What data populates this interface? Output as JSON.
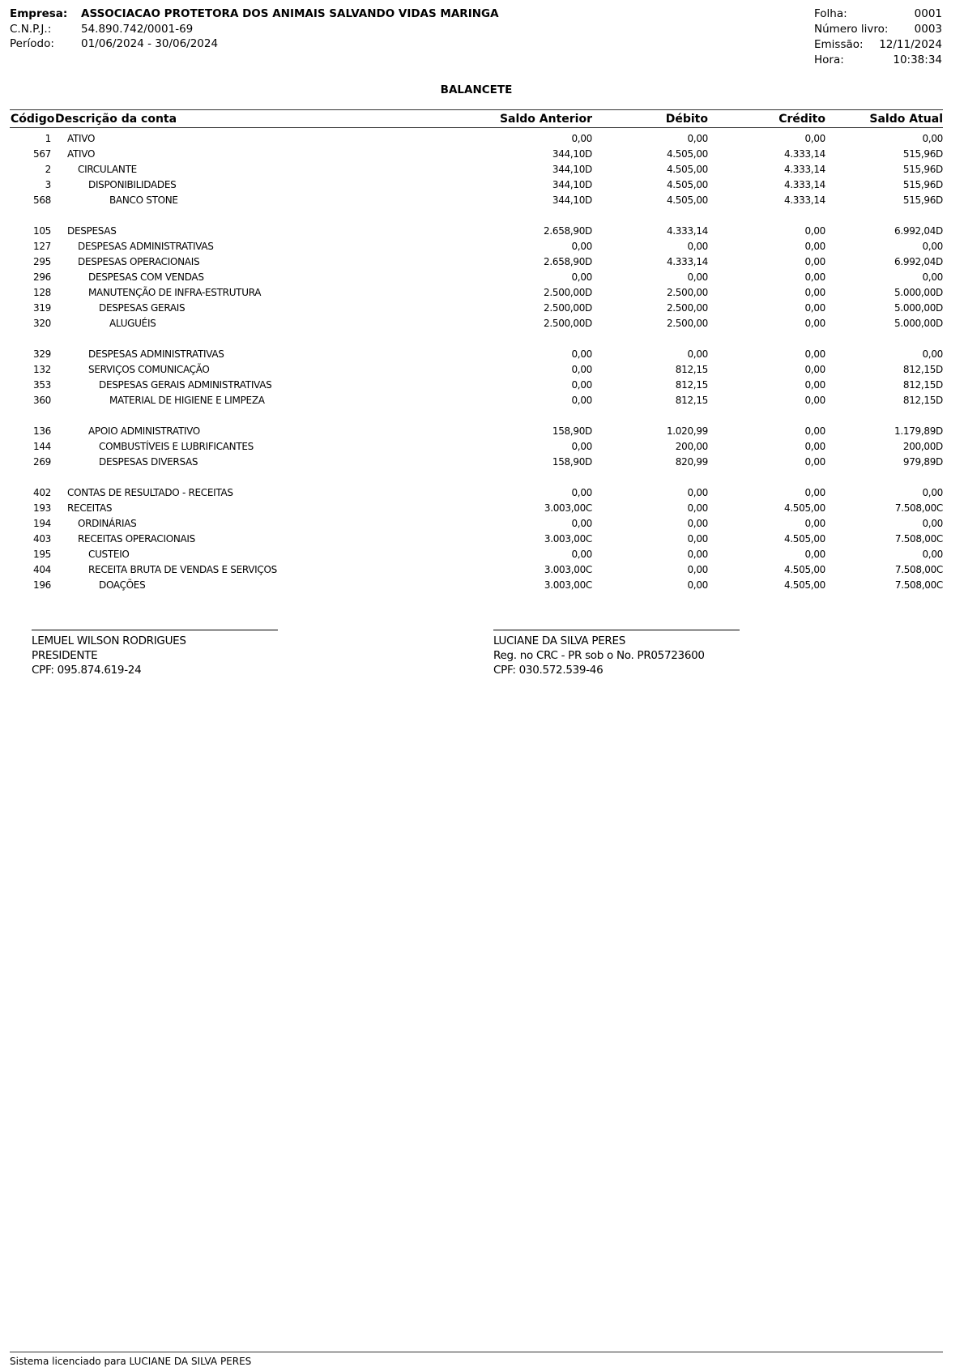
{
  "header": {
    "empresa_label": "Empresa:",
    "empresa": "ASSOCIACAO PROTETORA DOS ANIMAIS SALVANDO VIDAS MARINGA",
    "cnpj_label": "C.N.P.J.:",
    "cnpj": "54.890.742/0001-69",
    "periodo_label": "Período:",
    "periodo": "01/06/2024 - 30/06/2024",
    "folha_label": "Folha:",
    "folha": "0001",
    "livro_label": "Número livro:",
    "livro": "0003",
    "emissao_label": "Emissão:",
    "emissao": "12/11/2024",
    "hora_label": "Hora:",
    "hora": "10:38:34"
  },
  "title": "BALANCETE",
  "columns": {
    "codigo": "Código",
    "descricao": "Descrição da conta",
    "saldo_anterior": "Saldo Anterior",
    "debito": "Débito",
    "credito": "Crédito",
    "saldo_atual": "Saldo Atual"
  },
  "groups": [
    [
      {
        "code": "1",
        "desc": "ATIVO",
        "level": 0,
        "sa": "0,00",
        "deb": "0,00",
        "cred": "0,00",
        "at": "0,00"
      },
      {
        "code": "567",
        "desc": "ATIVO",
        "level": 0,
        "sa": "344,10D",
        "deb": "4.505,00",
        "cred": "4.333,14",
        "at": "515,96D"
      },
      {
        "code": "2",
        "desc": "CIRCULANTE",
        "level": 1,
        "sa": "344,10D",
        "deb": "4.505,00",
        "cred": "4.333,14",
        "at": "515,96D"
      },
      {
        "code": "3",
        "desc": "DISPONIBILIDADES",
        "level": 2,
        "sa": "344,10D",
        "deb": "4.505,00",
        "cred": "4.333,14",
        "at": "515,96D"
      },
      {
        "code": "568",
        "desc": "BANCO STONE",
        "level": 4,
        "sa": "344,10D",
        "deb": "4.505,00",
        "cred": "4.333,14",
        "at": "515,96D"
      }
    ],
    [
      {
        "code": "105",
        "desc": "DESPESAS",
        "level": 0,
        "sa": "2.658,90D",
        "deb": "4.333,14",
        "cred": "0,00",
        "at": "6.992,04D"
      },
      {
        "code": "127",
        "desc": "DESPESAS ADMINISTRATIVAS",
        "level": 1,
        "sa": "0,00",
        "deb": "0,00",
        "cred": "0,00",
        "at": "0,00"
      },
      {
        "code": "295",
        "desc": "DESPESAS OPERACIONAIS",
        "level": 1,
        "sa": "2.658,90D",
        "deb": "4.333,14",
        "cred": "0,00",
        "at": "6.992,04D"
      },
      {
        "code": "296",
        "desc": "DESPESAS COM VENDAS",
        "level": 2,
        "sa": "0,00",
        "deb": "0,00",
        "cred": "0,00",
        "at": "0,00"
      },
      {
        "code": "128",
        "desc": "MANUTENÇÃO DE INFRA-ESTRUTURA",
        "level": 2,
        "sa": "2.500,00D",
        "deb": "2.500,00",
        "cred": "0,00",
        "at": "5.000,00D"
      },
      {
        "code": "319",
        "desc": "DESPESAS GERAIS",
        "level": 3,
        "sa": "2.500,00D",
        "deb": "2.500,00",
        "cred": "0,00",
        "at": "5.000,00D"
      },
      {
        "code": "320",
        "desc": "ALUGUÉIS",
        "level": 4,
        "sa": "2.500,00D",
        "deb": "2.500,00",
        "cred": "0,00",
        "at": "5.000,00D"
      }
    ],
    [
      {
        "code": "329",
        "desc": "DESPESAS ADMINISTRATIVAS",
        "level": 2,
        "sa": "0,00",
        "deb": "0,00",
        "cred": "0,00",
        "at": "0,00"
      },
      {
        "code": "132",
        "desc": "SERVIÇOS COMUNICAÇÃO",
        "level": 2,
        "sa": "0,00",
        "deb": "812,15",
        "cred": "0,00",
        "at": "812,15D"
      },
      {
        "code": "353",
        "desc": "DESPESAS GERAIS ADMINISTRATIVAS",
        "level": 3,
        "sa": "0,00",
        "deb": "812,15",
        "cred": "0,00",
        "at": "812,15D"
      },
      {
        "code": "360",
        "desc": "MATERIAL DE HIGIENE E LIMPEZA",
        "level": 4,
        "sa": "0,00",
        "deb": "812,15",
        "cred": "0,00",
        "at": "812,15D"
      }
    ],
    [
      {
        "code": "136",
        "desc": "APOIO ADMINISTRATIVO",
        "level": 2,
        "sa": "158,90D",
        "deb": "1.020,99",
        "cred": "0,00",
        "at": "1.179,89D"
      },
      {
        "code": "144",
        "desc": "COMBUSTÍVEIS E LUBRIFICANTES",
        "level": 3,
        "sa": "0,00",
        "deb": "200,00",
        "cred": "0,00",
        "at": "200,00D"
      },
      {
        "code": "269",
        "desc": "DESPESAS DIVERSAS",
        "level": 3,
        "sa": "158,90D",
        "deb": "820,99",
        "cred": "0,00",
        "at": "979,89D"
      }
    ],
    [
      {
        "code": "402",
        "desc": "CONTAS DE RESULTADO - RECEITAS",
        "level": 0,
        "sa": "0,00",
        "deb": "0,00",
        "cred": "0,00",
        "at": "0,00"
      },
      {
        "code": "193",
        "desc": "RECEITAS",
        "level": 0,
        "sa": "3.003,00C",
        "deb": "0,00",
        "cred": "4.505,00",
        "at": "7.508,00C"
      },
      {
        "code": "194",
        "desc": "ORDINÁRIAS",
        "level": 1,
        "sa": "0,00",
        "deb": "0,00",
        "cred": "0,00",
        "at": "0,00"
      },
      {
        "code": "403",
        "desc": "RECEITAS OPERACIONAIS",
        "level": 1,
        "sa": "3.003,00C",
        "deb": "0,00",
        "cred": "4.505,00",
        "at": "7.508,00C"
      },
      {
        "code": "195",
        "desc": "CUSTEIO",
        "level": 2,
        "sa": "0,00",
        "deb": "0,00",
        "cred": "0,00",
        "at": "0,00"
      },
      {
        "code": "404",
        "desc": "RECEITA BRUTA DE VENDAS E SERVIÇOS",
        "level": 2,
        "sa": "3.003,00C",
        "deb": "0,00",
        "cred": "4.505,00",
        "at": "7.508,00C"
      },
      {
        "code": "196",
        "desc": "DOAÇÕES",
        "level": 3,
        "sa": "3.003,00C",
        "deb": "0,00",
        "cred": "4.505,00",
        "at": "7.508,00C"
      }
    ]
  ],
  "signatures": [
    {
      "name": "LEMUEL WILSON RODRIGUES",
      "line2": "PRESIDENTE",
      "line3": "CPF: 095.874.619-24"
    },
    {
      "name": "LUCIANE DA SILVA PERES",
      "line2": "Reg. no CRC - PR sob o No. PR05723600",
      "line3": "CPF: 030.572.539-46"
    }
  ],
  "footer": "Sistema licenciado para LUCIANE DA SILVA PERES"
}
